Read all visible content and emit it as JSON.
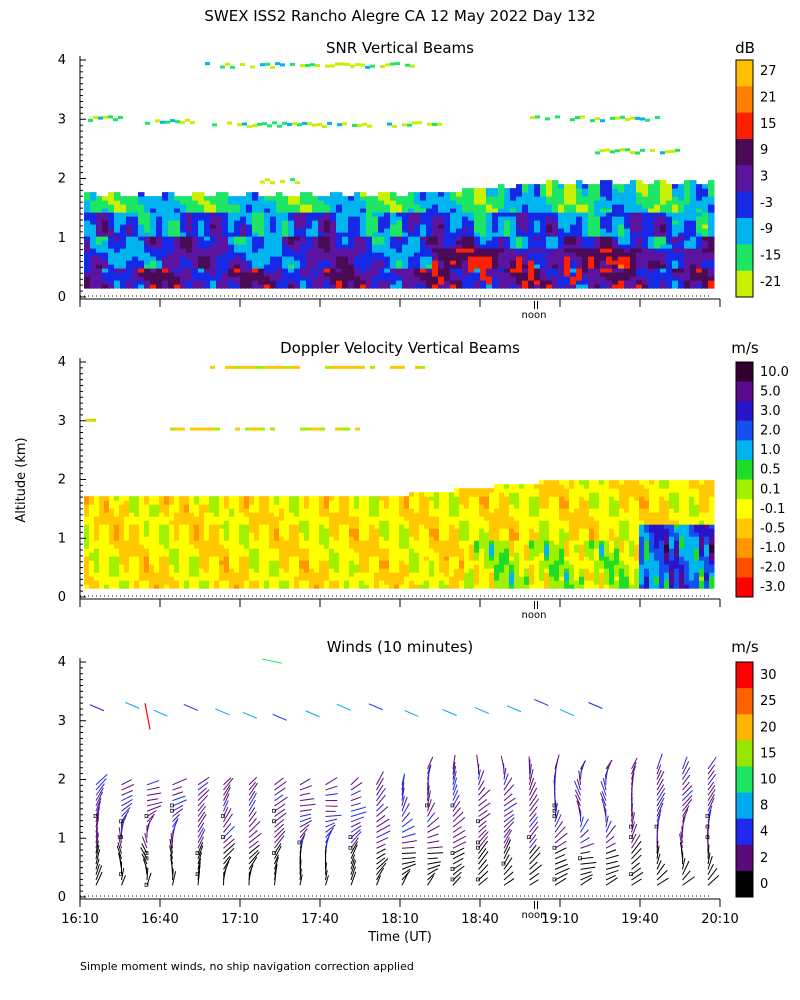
{
  "header": {
    "title": "SWEX ISS2 Rancho Alegre CA  12 May 2022 Day 132"
  },
  "footer": {
    "note": "Simple moment winds, no ship navigation correction applied"
  },
  "axes": {
    "ylabel": "Altitude (km)",
    "xlabel": "Time (UT)",
    "y_ticks": [
      "0",
      "1",
      "2",
      "3",
      "4"
    ],
    "x_ticks": [
      "16:10",
      "16:40",
      "17:10",
      "17:40",
      "18:10",
      "18:40",
      "19:10",
      "19:40",
      "20:10"
    ],
    "noon_label": "noon"
  },
  "chart_data": [
    {
      "type": "heatmap",
      "title": "SNR Vertical Beams",
      "units": "dB",
      "xlim": [
        "16:10",
        "20:10"
      ],
      "ylim": [
        0,
        4
      ],
      "colorbar": {
        "labels": [
          "27",
          "21",
          "15",
          "9",
          "3",
          "-3",
          "-9",
          "-15",
          "-21"
        ],
        "colors": [
          "#ffc000",
          "#ff8000",
          "#ff2000",
          "#4a0a55",
          "#5a14a0",
          "#1428e6",
          "#00b4f0",
          "#1ee664",
          "#c8f000"
        ]
      }
    },
    {
      "type": "heatmap",
      "title": "Doppler Velocity Vertical Beams",
      "units": "m/s",
      "xlim": [
        "16:10",
        "20:10"
      ],
      "ylim": [
        0,
        4
      ],
      "colorbar": {
        "labels": [
          "10.0",
          "5.0",
          "3.0",
          "2.0",
          "1.0",
          "0.5",
          "0.1",
          "-0.1",
          "-0.5",
          "-1.0",
          "-2.0",
          "-3.0"
        ],
        "colors": [
          "#32002d",
          "#5a0a8c",
          "#2814c8",
          "#1450f0",
          "#00b4f0",
          "#1edc28",
          "#a0f000",
          "#ffff00",
          "#ffc800",
          "#ff9600",
          "#ff5000",
          "#ff0000"
        ]
      }
    },
    {
      "type": "scatter",
      "title": "Winds (10 minutes)",
      "units": "m/s",
      "xlim": [
        "16:10",
        "20:10"
      ],
      "ylim": [
        0,
        4
      ],
      "colorbar": {
        "labels": [
          "30",
          "25",
          "20",
          "15",
          "10",
          "8",
          "4",
          "2",
          "0"
        ],
        "colors": [
          "#ff0000",
          "#ff6000",
          "#ffb400",
          "#96e600",
          "#1ee664",
          "#00aaf0",
          "#1e28f0",
          "#5a0a78",
          "#000000"
        ]
      }
    }
  ]
}
